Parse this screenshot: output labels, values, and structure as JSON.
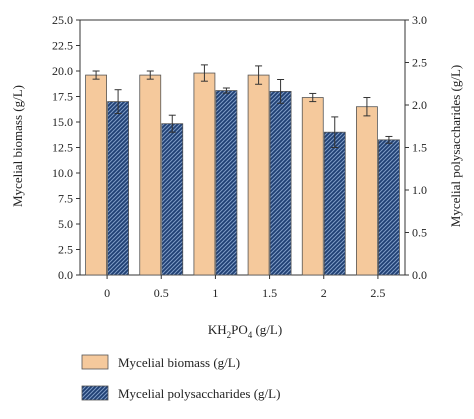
{
  "chart_data": {
    "type": "bar",
    "categories": [
      "0",
      "0.5",
      "1",
      "1.5",
      "2",
      "2.5"
    ],
    "xlabel_main": "KH",
    "xlabel_sub1": "2",
    "xlabel_mid": "PO",
    "xlabel_sub2": "4",
    "xlabel_tail": " (g/L)",
    "ylabel": "Mycelial biomass (g/L)",
    "y2label": "Mycelial polysaccharides (g/L)",
    "ylim": [
      0,
      25
    ],
    "y2lim": [
      0,
      3
    ],
    "yticks": [
      "0.0",
      "2.5",
      "5.0",
      "7.5",
      "10.0",
      "12.5",
      "15.0",
      "17.5",
      "20.0",
      "22.5",
      "25.0"
    ],
    "y2ticks": [
      "0.0",
      "0.5",
      "1.0",
      "1.5",
      "2.0",
      "2.5",
      "3.0"
    ],
    "legend_position": "bottom",
    "series": [
      {
        "name": "Mycelial biomass (g/L)",
        "axis": "left",
        "color": "#f5c99c",
        "values": [
          19.6,
          19.6,
          19.8,
          19.6,
          17.4,
          16.5
        ],
        "errors": [
          0.4,
          0.4,
          0.8,
          0.9,
          0.4,
          0.9
        ]
      },
      {
        "name": "Mycelial polysaccharides (g/L)",
        "axis": "right",
        "color": "#1f3f73",
        "hatch": true,
        "values": [
          2.04,
          1.78,
          2.17,
          2.16,
          1.68,
          1.59
        ],
        "errors": [
          0.14,
          0.1,
          0.03,
          0.14,
          0.18,
          0.04
        ]
      }
    ]
  }
}
